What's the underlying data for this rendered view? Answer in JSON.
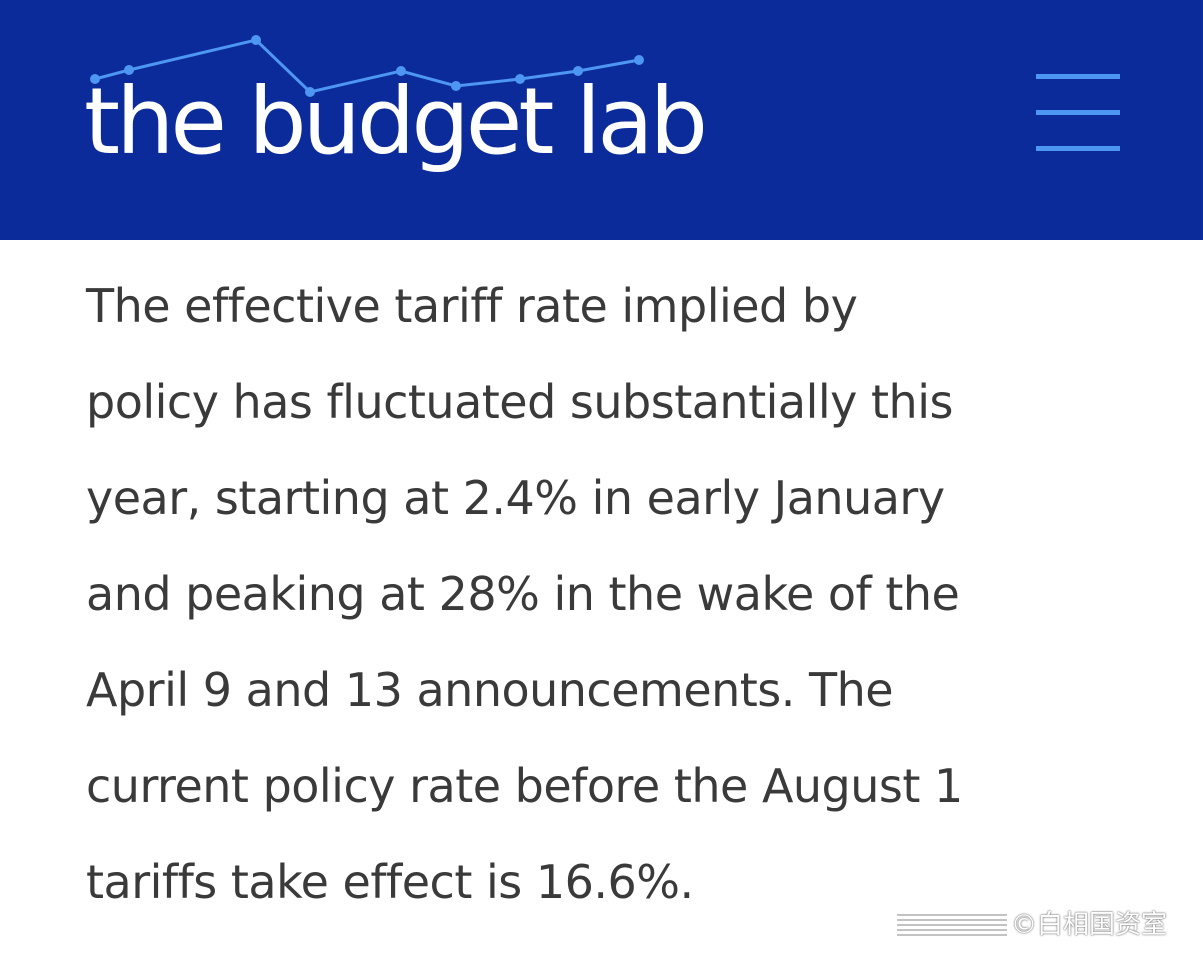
{
  "header": {
    "logo_text": "the budget lab",
    "logo_icon": "sparkline-logo-icon",
    "menu_icon": "hamburger-menu-icon",
    "background_color": "#0b2b9b",
    "accent_color": "#4d96f2"
  },
  "article": {
    "lines": [
      "The effective tariff rate implied by",
      "policy has fluctuated substantially this",
      "year, starting at 2.4% in early January",
      "and peaking at 28% in the wake of the",
      "April 9 and 13 announcements. The",
      "current policy rate before the August 1",
      "tariffs take effect is 16.6%."
    ],
    "text_color": "#3a3a3a"
  },
  "watermark": {
    "text": "©白相国资室"
  }
}
